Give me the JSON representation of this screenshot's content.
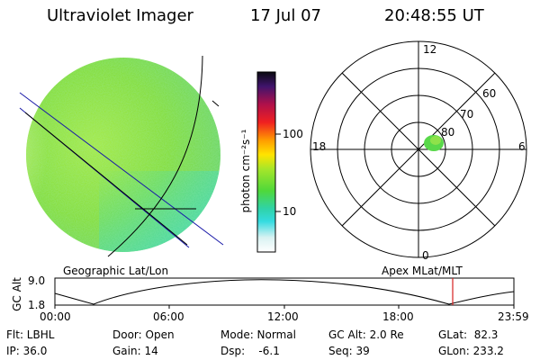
{
  "header": {
    "instrument": "Ultraviolet Imager",
    "date": "17 Jul 07",
    "time": "20:48:55 UT"
  },
  "colorbar": {
    "unit_label": "photon cm⁻²s⁻¹",
    "ticks": [
      "100",
      "10"
    ]
  },
  "polar": {
    "mlt_labels": {
      "top": "12",
      "left": "18",
      "right": "6",
      "bottom": "0"
    },
    "lat_labels": [
      "60",
      "70",
      "80"
    ]
  },
  "orbit": {
    "left_label": "Geographic Lat/Lon",
    "right_label": "Apex MLat/MLT",
    "axis_title": "GC Alt",
    "y_ticks": [
      "9.0",
      "1.8"
    ],
    "x_ticks": [
      "00:00",
      "06:00",
      "12:00",
      "18:00",
      "23:59"
    ],
    "current_marker_color": "#d62020"
  },
  "status": {
    "flt": "Flt: LBHL",
    "ip": "IP: 36.0",
    "door": "Door: Open",
    "gain": "Gain: 14",
    "mode": "Mode: Normal",
    "dsp": "Dsp:    -6.1",
    "gcalt": "GC Alt: 2.0 Re",
    "seq": "Seq: 39",
    "glat": "GLat:  82.3",
    "glon": "GLon: 233.2"
  },
  "colors": {
    "disk_fill": "#8de43a",
    "disk_limb": "#bff07a",
    "lat_lon_lines": "#1a1aa8",
    "grid": "#000000"
  }
}
